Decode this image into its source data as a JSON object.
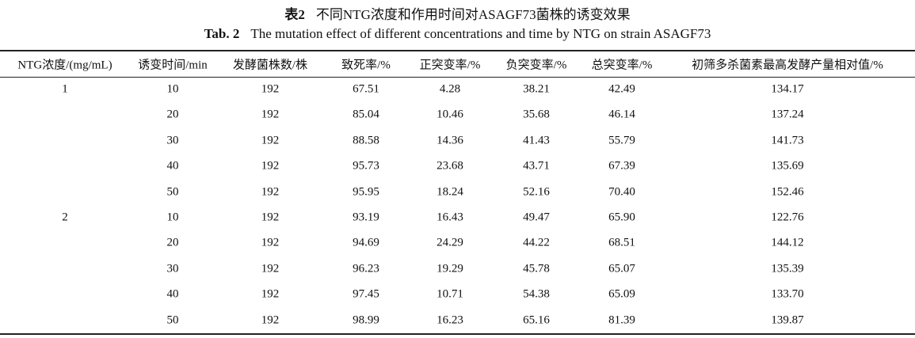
{
  "caption": {
    "zh_label": "表2",
    "zh_text": "不同NTG浓度和作用时间对ASAGF73菌株的诱变效果",
    "en_label": "Tab. 2",
    "en_text": "The mutation effect of different concentrations and time by NTG on strain ASAGF73"
  },
  "table": {
    "headers": [
      "NTG浓度/(mg/mL)",
      "诱变时间/min",
      "发酵菌株数/株",
      "致死率/%",
      "正突变率/%",
      "负突变率/%",
      "总突变率/%",
      "初筛多杀菌素最高发酵产量相对值/%"
    ],
    "groups": [
      {
        "concentration": "1",
        "rows": [
          [
            "10",
            "192",
            "67.51",
            "4.28",
            "38.21",
            "42.49",
            "134.17"
          ],
          [
            "20",
            "192",
            "85.04",
            "10.46",
            "35.68",
            "46.14",
            "137.24"
          ],
          [
            "30",
            "192",
            "88.58",
            "14.36",
            "41.43",
            "55.79",
            "141.73"
          ],
          [
            "40",
            "192",
            "95.73",
            "23.68",
            "43.71",
            "67.39",
            "135.69"
          ],
          [
            "50",
            "192",
            "95.95",
            "18.24",
            "52.16",
            "70.40",
            "152.46"
          ]
        ]
      },
      {
        "concentration": "2",
        "rows": [
          [
            "10",
            "192",
            "93.19",
            "16.43",
            "49.47",
            "65.90",
            "122.76"
          ],
          [
            "20",
            "192",
            "94.69",
            "24.29",
            "44.22",
            "68.51",
            "144.12"
          ],
          [
            "30",
            "192",
            "96.23",
            "19.29",
            "45.78",
            "65.07",
            "135.39"
          ],
          [
            "40",
            "192",
            "97.45",
            "10.71",
            "54.38",
            "65.09",
            "133.70"
          ],
          [
            "50",
            "192",
            "98.99",
            "16.23",
            "65.16",
            "81.39",
            "139.87"
          ]
        ]
      }
    ]
  }
}
